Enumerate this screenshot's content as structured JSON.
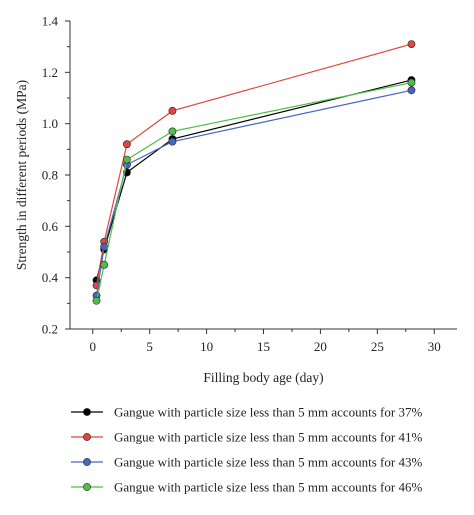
{
  "chart_data": {
    "type": "line",
    "xlabel": "Filling body age (day)",
    "ylabel": "Strength in different periods (MPa)",
    "xlim": [
      -2,
      32
    ],
    "ylim": [
      0.2,
      1.4
    ],
    "x_ticks": [
      0,
      5,
      10,
      15,
      20,
      25,
      30
    ],
    "x_tick_labels": [
      "0",
      "5",
      "10",
      "15",
      "20",
      "25",
      "30"
    ],
    "y_ticks": [
      0.2,
      0.4,
      0.6,
      0.8,
      1.0,
      1.2,
      1.4
    ],
    "y_tick_labels": [
      "0.2",
      "0.4",
      "0.6",
      "0.8",
      "1.0",
      "1.2",
      "1.4"
    ],
    "grid": false,
    "legend_position": "bottom",
    "x": [
      0.33,
      1,
      3,
      7,
      28
    ],
    "series": [
      {
        "name": "Gangue with particle size less than 5 mm accounts for 37%",
        "color": "#000000",
        "values": [
          0.39,
          0.51,
          0.81,
          0.94,
          1.17
        ]
      },
      {
        "name": "Gangue with particle size less than 5 mm accounts for 41%",
        "color": "#e0463b",
        "values": [
          0.37,
          0.54,
          0.92,
          1.05,
          1.31
        ]
      },
      {
        "name": "Gangue with particle size less than 5 mm accounts for 43%",
        "color": "#4666c4",
        "values": [
          0.33,
          0.52,
          0.84,
          0.93,
          1.13
        ]
      },
      {
        "name": "Gangue with particle size less than 5 mm accounts for 46%",
        "color": "#4fbf4a",
        "values": [
          0.31,
          0.45,
          0.86,
          0.97,
          1.16
        ]
      }
    ]
  }
}
